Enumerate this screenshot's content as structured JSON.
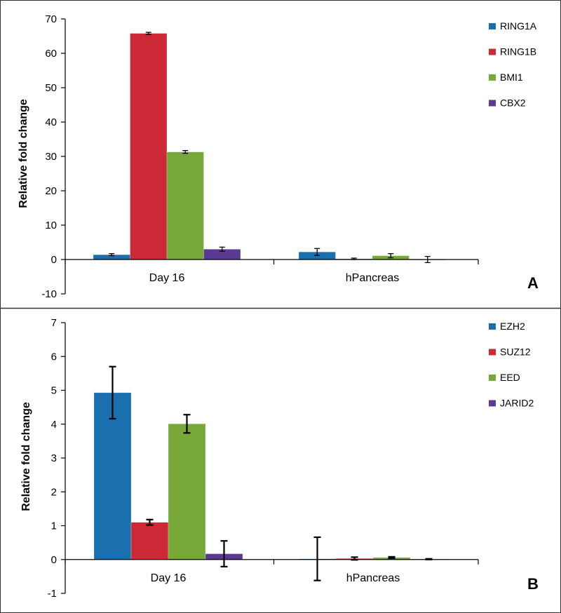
{
  "chart_data": [
    {
      "type": "bar",
      "panel": "A",
      "title": "",
      "xlabel": "",
      "ylabel": "Relative fold change",
      "ylim": [
        -10,
        70
      ],
      "yticks": [
        -10,
        0,
        10,
        20,
        30,
        40,
        50,
        60,
        70
      ],
      "categories": [
        "Day 16",
        "hPancreas"
      ],
      "series": [
        {
          "name": "RING1A",
          "color": "#1a6faf",
          "values": [
            1.4,
            2.2
          ],
          "errors": [
            0.3,
            1.0
          ]
        },
        {
          "name": "RING1B",
          "color": "#cc2936",
          "values": [
            65.8,
            0.2
          ],
          "errors": [
            0.3,
            0.2
          ]
        },
        {
          "name": "BMI1",
          "color": "#78a83a",
          "values": [
            31.3,
            1.1
          ],
          "errors": [
            0.4,
            0.6
          ]
        },
        {
          "name": "CBX2",
          "color": "#5b3a96",
          "values": [
            3.0,
            0.0
          ],
          "errors": [
            0.6,
            0.9
          ]
        }
      ],
      "legend_position": "top-right"
    },
    {
      "type": "bar",
      "panel": "B",
      "title": "",
      "xlabel": "",
      "ylabel": "Relative fold change",
      "ylim": [
        -1,
        7
      ],
      "yticks": [
        -1,
        0,
        1,
        2,
        3,
        4,
        5,
        6,
        7
      ],
      "categories": [
        "Day 16",
        "hPancreas"
      ],
      "series": [
        {
          "name": "EZH2",
          "color": "#1a6faf",
          "values": [
            4.93,
            0.02
          ],
          "errors": [
            0.77,
            0.64
          ]
        },
        {
          "name": "SUZ12",
          "color": "#cc2936",
          "values": [
            1.1,
            0.03
          ],
          "errors": [
            0.08,
            0.04
          ]
        },
        {
          "name": "EED",
          "color": "#78a83a",
          "values": [
            4.01,
            0.06
          ],
          "errors": [
            0.27,
            0.02
          ]
        },
        {
          "name": "JARID2",
          "color": "#5b3a96",
          "values": [
            0.17,
            0.01
          ],
          "errors": [
            0.38,
            0.01
          ]
        }
      ],
      "legend_position": "top-right"
    }
  ]
}
